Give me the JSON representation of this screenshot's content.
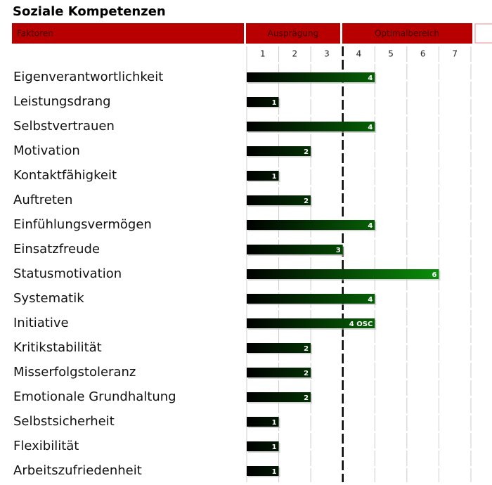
{
  "chart_data": {
    "type": "bar",
    "orientation": "horizontal",
    "title": "Soziale Kompetenzen",
    "header": {
      "factor": "Faktoren",
      "groups": [
        "Ausprägung",
        "Optimalbereich"
      ]
    },
    "categories": [
      "Eigenverantwortlichkeit",
      "Leistungsdrang",
      "Selbstvertrauen",
      "Motivation",
      "Kontaktfähigkeit",
      "Auftreten",
      "Einfühlungsvermögen",
      "Einsatzfreude",
      "Statusmotivation",
      "Systematik",
      "Initiative",
      "Kritikstabilität",
      "Misserfolgstoleranz",
      "Emotionale Grundhaltung",
      "Selbstsicherheit",
      "Flexibilität",
      "Arbeitszufriedenheit"
    ],
    "values": [
      4,
      1,
      4,
      2,
      1,
      2,
      4,
      3,
      6,
      4,
      4,
      2,
      2,
      2,
      1,
      1,
      1
    ],
    "value_labels": [
      "4",
      "1",
      "4",
      "2",
      "1",
      "2",
      "4",
      "3",
      "6",
      "4",
      "4 OSC",
      "2",
      "2",
      "2",
      "1",
      "1",
      "1"
    ],
    "color": "#0a8f0a",
    "header_color": "#b80000",
    "xlim": [
      0,
      7
    ],
    "xticks": [
      1,
      2,
      3,
      4,
      5,
      6,
      7
    ],
    "grid": true
  }
}
